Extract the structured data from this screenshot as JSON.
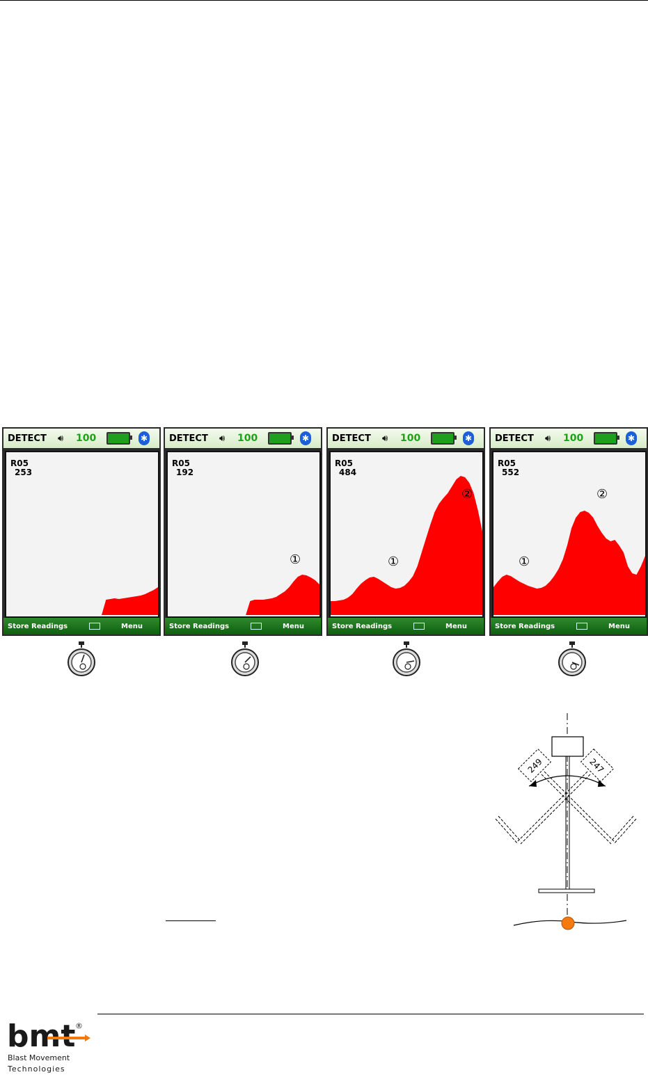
{
  "screens": [
    {
      "mode": "DETECT",
      "signal": "100",
      "reading_id": "R05",
      "reading": "253",
      "softkey_left": "Store Readings",
      "softkey_right": "Menu",
      "markers": []
    },
    {
      "mode": "DETECT",
      "signal": "100",
      "reading_id": "R05",
      "reading": "192",
      "softkey_left": "Store Readings",
      "softkey_right": "Menu",
      "markers": [
        "①"
      ]
    },
    {
      "mode": "DETECT",
      "signal": "100",
      "reading_id": "R05",
      "reading": "484",
      "softkey_left": "Store Readings",
      "softkey_right": "Menu",
      "markers": [
        "①",
        "②"
      ]
    },
    {
      "mode": "DETECT",
      "signal": "100",
      "reading_id": "R05",
      "reading": "552",
      "softkey_left": "Store Readings",
      "softkey_right": "Menu",
      "markers": [
        "①",
        "②"
      ]
    }
  ],
  "signal_traces": [
    [
      0,
      0,
      0,
      0,
      0,
      0,
      0,
      0,
      0,
      0,
      0,
      0,
      0,
      0,
      0,
      0,
      0,
      0,
      0,
      0,
      0,
      0,
      0,
      22,
      23,
      24,
      23,
      24,
      25,
      26,
      27,
      28,
      30,
      33,
      36,
      40
    ],
    [
      0,
      0,
      0,
      0,
      0,
      0,
      0,
      0,
      0,
      0,
      0,
      0,
      0,
      0,
      0,
      0,
      0,
      0,
      0,
      20,
      22,
      22,
      22,
      23,
      24,
      26,
      30,
      34,
      40,
      48,
      55,
      58,
      57,
      54,
      50,
      44
    ],
    [
      20,
      20,
      21,
      22,
      25,
      30,
      38,
      45,
      50,
      54,
      55,
      52,
      48,
      44,
      40,
      38,
      39,
      42,
      48,
      56,
      70,
      90,
      110,
      130,
      148,
      160,
      168,
      175,
      185,
      195,
      200,
      198,
      190,
      175,
      150,
      120
    ],
    [
      40,
      48,
      55,
      58,
      56,
      52,
      48,
      45,
      42,
      40,
      38,
      39,
      42,
      48,
      56,
      66,
      80,
      100,
      125,
      140,
      148,
      150,
      147,
      140,
      128,
      118,
      110,
      106,
      108,
      100,
      90,
      70,
      60,
      58,
      70,
      85
    ]
  ],
  "diagram": {
    "left_label": "249",
    "right_label": "247"
  },
  "logo": {
    "brand": "bmt",
    "registered": "®",
    "line1": "Blast Movement",
    "line2": "Technologies"
  }
}
